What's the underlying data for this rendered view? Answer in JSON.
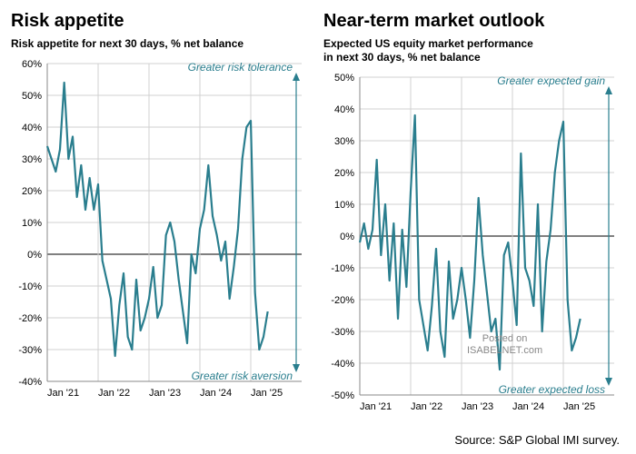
{
  "source_text": "Source: S&P Global IMI survey.",
  "watermark": {
    "line1": "Posted on",
    "line2": "ISABELNET.com"
  },
  "panels": [
    {
      "title": "Risk appetite",
      "subtitle": "Risk appetite for next 30 days, % net balance",
      "annotation_top": "Greater risk tolerance",
      "annotation_bottom": "Greater risk aversion",
      "chart": {
        "type": "line",
        "line_color": "#2a7e8e",
        "line_width": 2.2,
        "background_color": "#ffffff",
        "grid_color": "#d0d0d0",
        "axis_color": "#8a8a8a",
        "axis_color_dark": "#000000",
        "arrow_color": "#2a7e8e",
        "annotation_color": "#2a7e8e",
        "annotation_fontsize": 12,
        "annotation_italic": true,
        "label_fontsize": 11,
        "ylim": [
          -40,
          60
        ],
        "ytick_step": 10,
        "ytick_suffix": "%",
        "x_categories": [
          "Jan '21",
          "Jan '22",
          "Jan '23",
          "Jan '24",
          "Jan '25"
        ],
        "x_domain": [
          0,
          60
        ],
        "x_tick_positions": [
          0,
          12,
          24,
          36,
          48
        ],
        "zero_line": true,
        "series": [
          {
            "data": [
              [
                0,
                34
              ],
              [
                1,
                30
              ],
              [
                2,
                26
              ],
              [
                3,
                33
              ],
              [
                4,
                54
              ],
              [
                5,
                30
              ],
              [
                6,
                37
              ],
              [
                7,
                18
              ],
              [
                8,
                28
              ],
              [
                9,
                14
              ],
              [
                10,
                24
              ],
              [
                11,
                14
              ],
              [
                12,
                22
              ],
              [
                13,
                -2
              ],
              [
                14,
                -8
              ],
              [
                15,
                -14
              ],
              [
                16,
                -32
              ],
              [
                17,
                -16
              ],
              [
                18,
                -6
              ],
              [
                19,
                -26
              ],
              [
                20,
                -30
              ],
              [
                21,
                -8
              ],
              [
                22,
                -24
              ],
              [
                23,
                -20
              ],
              [
                24,
                -14
              ],
              [
                25,
                -4
              ],
              [
                26,
                -20
              ],
              [
                27,
                -16
              ],
              [
                28,
                6
              ],
              [
                29,
                10
              ],
              [
                30,
                4
              ],
              [
                31,
                -8
              ],
              [
                32,
                -18
              ],
              [
                33,
                -28
              ],
              [
                34,
                0
              ],
              [
                35,
                -6
              ],
              [
                36,
                8
              ],
              [
                37,
                14
              ],
              [
                38,
                28
              ],
              [
                39,
                12
              ],
              [
                40,
                6
              ],
              [
                41,
                -2
              ],
              [
                42,
                4
              ],
              [
                43,
                -14
              ],
              [
                44,
                -4
              ],
              [
                45,
                8
              ],
              [
                46,
                30
              ],
              [
                47,
                40
              ],
              [
                48,
                42
              ],
              [
                49,
                -12
              ],
              [
                50,
                -30
              ],
              [
                51,
                -26
              ],
              [
                52,
                -18
              ]
            ]
          }
        ]
      }
    },
    {
      "title": "Near-term market outlook",
      "subtitle": "Expected US equity market performance\nin next 30 days, % net balance",
      "annotation_top": "Greater expected gain",
      "annotation_bottom": "Greater  expected loss",
      "chart": {
        "type": "line",
        "line_color": "#2a7e8e",
        "line_width": 2.2,
        "background_color": "#ffffff",
        "grid_color": "#d0d0d0",
        "axis_color": "#8a8a8a",
        "axis_color_dark": "#000000",
        "arrow_color": "#2a7e8e",
        "annotation_color": "#2a7e8e",
        "annotation_fontsize": 12,
        "annotation_italic": true,
        "label_fontsize": 11,
        "ylim": [
          -50,
          50
        ],
        "ytick_step": 10,
        "ytick_suffix": "%",
        "x_categories": [
          "Jan '21",
          "Jan '22",
          "Jan '23",
          "Jan '24",
          "Jan '25"
        ],
        "x_domain": [
          0,
          60
        ],
        "x_tick_positions": [
          0,
          12,
          24,
          36,
          48
        ],
        "zero_line": true,
        "series": [
          {
            "data": [
              [
                0,
                -2
              ],
              [
                1,
                4
              ],
              [
                2,
                -4
              ],
              [
                3,
                2
              ],
              [
                4,
                24
              ],
              [
                5,
                -6
              ],
              [
                6,
                10
              ],
              [
                7,
                -14
              ],
              [
                8,
                4
              ],
              [
                9,
                -26
              ],
              [
                10,
                2
              ],
              [
                11,
                -16
              ],
              [
                12,
                14
              ],
              [
                13,
                38
              ],
              [
                14,
                -20
              ],
              [
                15,
                -28
              ],
              [
                16,
                -36
              ],
              [
                17,
                -22
              ],
              [
                18,
                -4
              ],
              [
                19,
                -30
              ],
              [
                20,
                -38
              ],
              [
                21,
                -8
              ],
              [
                22,
                -26
              ],
              [
                23,
                -20
              ],
              [
                24,
                -10
              ],
              [
                25,
                -20
              ],
              [
                26,
                -32
              ],
              [
                27,
                -14
              ],
              [
                28,
                12
              ],
              [
                29,
                -6
              ],
              [
                30,
                -18
              ],
              [
                31,
                -30
              ],
              [
                32,
                -26
              ],
              [
                33,
                -42
              ],
              [
                34,
                -6
              ],
              [
                35,
                -2
              ],
              [
                36,
                -14
              ],
              [
                37,
                -28
              ],
              [
                38,
                26
              ],
              [
                39,
                -10
              ],
              [
                40,
                -14
              ],
              [
                41,
                -22
              ],
              [
                42,
                10
              ],
              [
                43,
                -30
              ],
              [
                44,
                -8
              ],
              [
                45,
                2
              ],
              [
                46,
                20
              ],
              [
                47,
                30
              ],
              [
                48,
                36
              ],
              [
                49,
                -20
              ],
              [
                50,
                -36
              ],
              [
                51,
                -32
              ],
              [
                52,
                -26
              ]
            ]
          }
        ]
      }
    }
  ]
}
